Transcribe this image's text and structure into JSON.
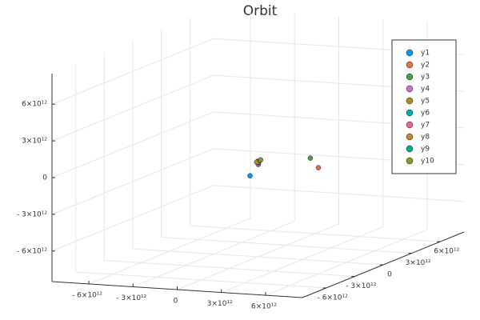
{
  "chart_data": {
    "type": "scatter3d",
    "title": "Orbit",
    "xlim": [
      -8500000000000.0,
      8500000000000.0
    ],
    "ylim": [
      -8500000000000.0,
      8500000000000.0
    ],
    "zlim": [
      -8500000000000.0,
      8500000000000.0
    ],
    "xticks": [
      {
        "value": -6000000000000.0,
        "label": "- 6×10¹²"
      },
      {
        "value": -3000000000000.0,
        "label": "- 3×10¹²"
      },
      0,
      {
        "value": 3000000000000.0,
        "label": "3×10¹²"
      },
      {
        "value": 6000000000000.0,
        "label": "6×10¹²"
      }
    ],
    "yticks": [
      {
        "value": -6000000000000.0,
        "label": "- 6×10¹²"
      },
      {
        "value": -3000000000000.0,
        "label": "- 3×10¹²"
      },
      0,
      {
        "value": 3000000000000.0,
        "label": "3×10¹²"
      },
      {
        "value": 6000000000000.0,
        "label": "6×10¹²"
      }
    ],
    "zticks": [
      {
        "value": -6000000000000.0,
        "label": "- 6×10¹²"
      },
      {
        "value": -3000000000000.0,
        "label": "- 3×10¹²"
      },
      0,
      {
        "value": 3000000000000.0,
        "label": "3×10¹²"
      },
      {
        "value": 6000000000000.0,
        "label": "6×10¹²"
      }
    ],
    "grid": true,
    "legend": "top-right",
    "series": [
      {
        "name": "y1",
        "color": "#009afa",
        "x": [
          -540000000000.0
        ],
        "y": [
          0
        ],
        "z": [
          -1920000000000.0
        ]
      },
      {
        "name": "y2",
        "color": "#e36f47",
        "x": [
          4100000000000.0
        ],
        "y": [
          0
        ],
        "z": [
          -900000000000.0
        ]
      },
      {
        "name": "y3",
        "color": "#3ea44e",
        "x": [
          3550000000000.0
        ],
        "y": [
          0
        ],
        "z": [
          -160000000000.0
        ]
      },
      {
        "name": "y4",
        "color": "#c371d2",
        "x": [
          20000000000.0
        ],
        "y": [
          0
        ],
        "z": [
          -960000000000.0
        ]
      },
      {
        "name": "y5",
        "color": "#ac8e18",
        "x": [
          -30000000000.0
        ],
        "y": [
          0
        ],
        "z": [
          -700000000000.0
        ]
      },
      {
        "name": "y6",
        "color": "#00aaae",
        "x": [
          20000000000.0
        ],
        "y": [
          0
        ],
        "z": [
          -830000000000.0
        ]
      },
      {
        "name": "y7",
        "color": "#ed5e93",
        "x": [
          20000000000.0
        ],
        "y": [
          0
        ],
        "z": [
          -760000000000.0
        ]
      },
      {
        "name": "y8",
        "color": "#c68225",
        "x": [
          -90000000000.0
        ],
        "y": [
          0
        ],
        "z": [
          -770000000000.0
        ]
      },
      {
        "name": "y9",
        "color": "#00a98d",
        "x": [
          130000000000.0
        ],
        "y": [
          0
        ],
        "z": [
          -620000000000.0
        ]
      },
      {
        "name": "y10",
        "color": "#8e971e",
        "x": [
          180000000000.0
        ],
        "y": [
          0
        ],
        "z": [
          -560000000000.0
        ]
      }
    ]
  }
}
